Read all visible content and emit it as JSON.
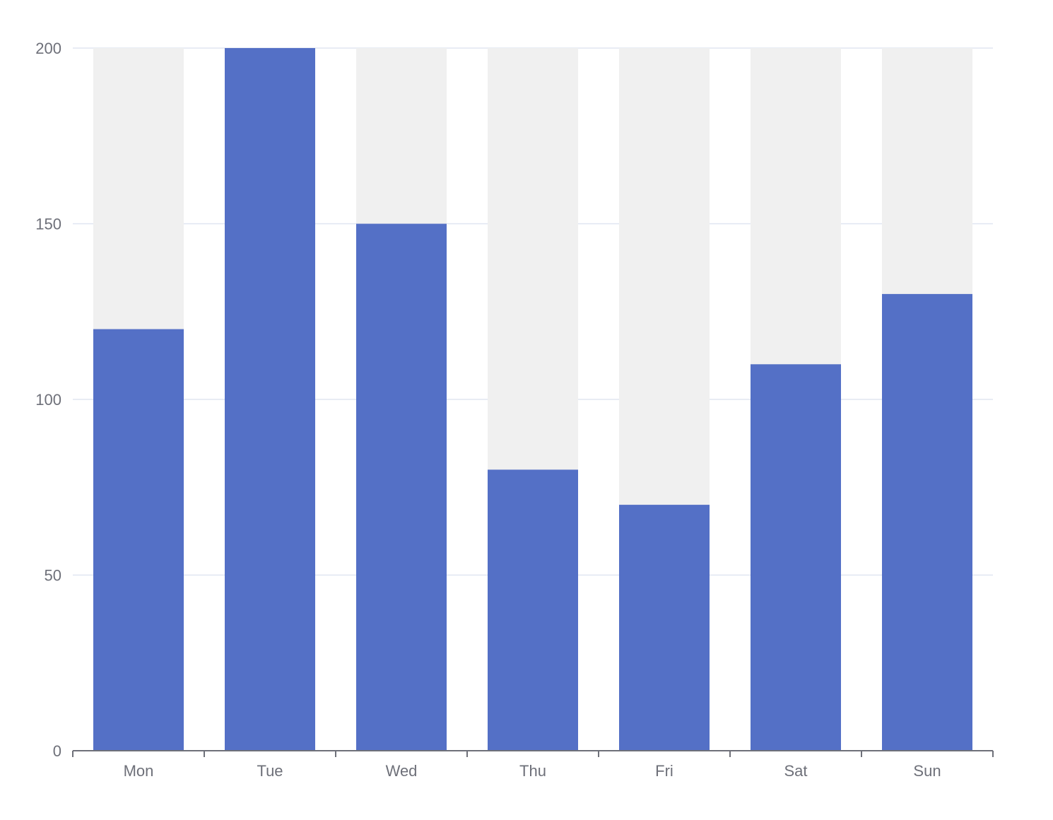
{
  "chart_data": {
    "type": "bar",
    "title": "",
    "xlabel": "",
    "ylabel": "",
    "categories": [
      "Mon",
      "Tue",
      "Wed",
      "Thu",
      "Fri",
      "Sat",
      "Sun"
    ],
    "series": [
      {
        "values": [
          120,
          200,
          150,
          80,
          70,
          110,
          130
        ]
      }
    ],
    "ylim": [
      0,
      200
    ],
    "yticks": [
      "0",
      "50",
      "100",
      "150",
      "200"
    ],
    "show_background": true,
    "grid": true,
    "legend": "none",
    "colors": {
      "bar": "#5470c6",
      "bar_background": "#f0f0f0",
      "grid": "#e0e6f1",
      "axis": "#6e7079",
      "label": "#6e7079"
    }
  }
}
